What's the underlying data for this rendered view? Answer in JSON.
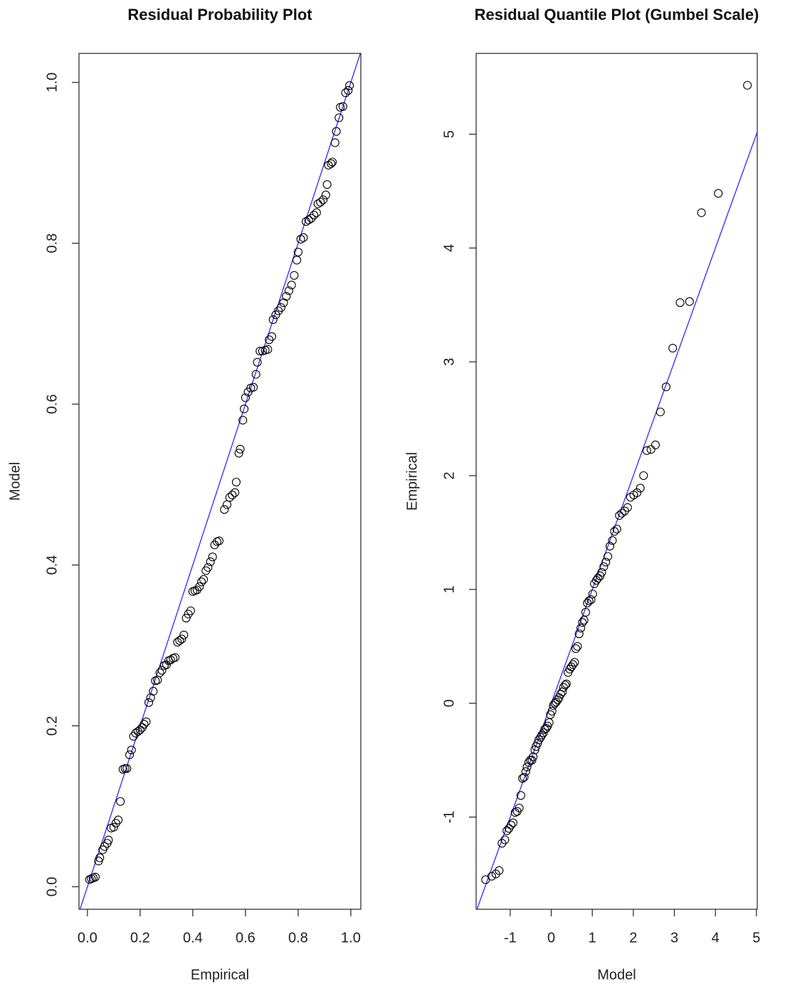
{
  "chart_data": [
    {
      "type": "scatter",
      "title": "Residual Probability Plot",
      "x_label": "Empirical",
      "y_label": "Model",
      "xlim": [
        -0.032,
        1.038
      ],
      "ylim": [
        -0.028,
        1.036
      ],
      "xticks": [
        {
          "value": 0,
          "label": "0.0"
        },
        0.2,
        0.4,
        0.6,
        0.8,
        {
          "value": 1,
          "label": "1.0"
        }
      ],
      "yticks": [
        {
          "value": 0,
          "label": "0.0"
        },
        0.2,
        0.4,
        0.6,
        0.8,
        {
          "value": 1,
          "label": "1.0"
        }
      ],
      "marker_color": "#000000",
      "reference_line": {
        "slope": 1,
        "intercept": 0,
        "color": "#2a2aff"
      },
      "x": [
        0.008,
        0.015,
        0.022,
        0.03,
        0.042,
        0.047,
        0.058,
        0.065,
        0.075,
        0.08,
        0.09,
        0.1,
        0.108,
        0.117,
        0.125,
        0.135,
        0.143,
        0.15,
        0.16,
        0.167,
        0.175,
        0.183,
        0.192,
        0.2,
        0.208,
        0.215,
        0.223,
        0.233,
        0.24,
        0.25,
        0.258,
        0.266,
        0.275,
        0.283,
        0.292,
        0.3,
        0.308,
        0.316,
        0.325,
        0.333,
        0.342,
        0.35,
        0.358,
        0.366,
        0.375,
        0.383,
        0.392,
        0.4,
        0.408,
        0.416,
        0.425,
        0.433,
        0.441,
        0.45,
        0.458,
        0.467,
        0.475,
        0.483,
        0.492,
        0.5,
        0.52,
        0.53,
        0.54,
        0.55,
        0.56,
        0.565,
        0.575,
        0.58,
        0.59,
        0.595,
        0.6,
        0.61,
        0.62,
        0.63,
        0.64,
        0.645,
        0.655,
        0.665,
        0.675,
        0.685,
        0.69,
        0.7,
        0.705,
        0.715,
        0.725,
        0.735,
        0.745,
        0.755,
        0.765,
        0.775,
        0.785,
        0.795,
        0.8,
        0.81,
        0.82,
        0.83,
        0.84,
        0.85,
        0.86,
        0.87,
        0.875,
        0.885,
        0.895,
        0.905,
        0.91,
        0.915,
        0.925,
        0.93,
        0.94,
        0.945,
        0.955,
        0.96,
        0.97,
        0.98,
        0.99,
        0.995
      ],
      "y": [
        0.009,
        0.01,
        0.011,
        0.012,
        0.032,
        0.036,
        0.046,
        0.05,
        0.054,
        0.058,
        0.073,
        0.074,
        0.079,
        0.083,
        0.106,
        0.146,
        0.147,
        0.147,
        0.164,
        0.17,
        0.187,
        0.191,
        0.193,
        0.195,
        0.198,
        0.202,
        0.205,
        0.229,
        0.235,
        0.243,
        0.256,
        0.257,
        0.266,
        0.269,
        0.275,
        0.276,
        0.281,
        0.282,
        0.284,
        0.285,
        0.304,
        0.306,
        0.308,
        0.313,
        0.334,
        0.339,
        0.343,
        0.367,
        0.368,
        0.369,
        0.373,
        0.379,
        0.382,
        0.393,
        0.397,
        0.404,
        0.41,
        0.425,
        0.429,
        0.43,
        0.469,
        0.475,
        0.484,
        0.487,
        0.49,
        0.503,
        0.539,
        0.544,
        0.58,
        0.594,
        0.608,
        0.615,
        0.62,
        0.621,
        0.637,
        0.652,
        0.666,
        0.666,
        0.667,
        0.668,
        0.68,
        0.684,
        0.705,
        0.711,
        0.716,
        0.72,
        0.726,
        0.734,
        0.741,
        0.748,
        0.76,
        0.779,
        0.789,
        0.805,
        0.807,
        0.827,
        0.829,
        0.831,
        0.835,
        0.838,
        0.849,
        0.851,
        0.854,
        0.86,
        0.873,
        0.897,
        0.899,
        0.901,
        0.925,
        0.939,
        0.956,
        0.969,
        0.97,
        0.987,
        0.99,
        0.996
      ]
    },
    {
      "type": "scatter",
      "title": "Residual Quantile Plot (Gumbel Scale)",
      "x_label": "Model",
      "y_label": "Empirical",
      "xlim": [
        -1.83,
        5.02
      ],
      "ylim": [
        -1.81,
        5.71
      ],
      "xticks": [
        -1,
        0,
        1,
        2,
        3,
        4,
        5
      ],
      "yticks": [
        -1,
        0,
        1,
        2,
        3,
        4,
        5
      ],
      "marker_color": "#000000",
      "reference_line": {
        "slope": 1,
        "intercept": 0,
        "color": "#2a2aff"
      },
      "x": [
        -1.6,
        -1.45,
        -1.35,
        -1.27,
        -1.2,
        -1.13,
        -1.08,
        -1.03,
        -0.98,
        -0.93,
        -0.88,
        -0.83,
        -0.78,
        -0.74,
        -0.7,
        -0.66,
        -0.62,
        -0.59,
        -0.55,
        -0.51,
        -0.47,
        -0.44,
        -0.4,
        -0.37,
        -0.33,
        -0.3,
        -0.26,
        -0.23,
        -0.19,
        -0.16,
        -0.12,
        -0.09,
        -0.05,
        -0.02,
        0.02,
        0.05,
        0.09,
        0.12,
        0.16,
        0.19,
        0.23,
        0.27,
        0.3,
        0.34,
        0.37,
        0.41,
        0.45,
        0.49,
        0.53,
        0.57,
        0.6,
        0.64,
        0.68,
        0.72,
        0.76,
        0.8,
        0.84,
        0.88,
        0.92,
        0.97,
        1.01,
        1.05,
        1.1,
        1.14,
        1.19,
        1.23,
        1.28,
        1.33,
        1.38,
        1.43,
        1.49,
        1.54,
        1.6,
        1.66,
        1.72,
        1.79,
        1.86,
        1.93,
        2.01,
        2.09,
        2.17,
        2.25,
        2.33,
        2.43,
        2.54,
        2.66,
        2.8,
        2.96,
        3.14,
        3.37,
        3.66,
        4.07,
        4.78
      ],
      "y": [
        -1.55,
        -1.52,
        -1.5,
        -1.47,
        -1.23,
        -1.2,
        -1.12,
        -1.1,
        -1.07,
        -1.05,
        -0.96,
        -0.95,
        -0.92,
        -0.81,
        -0.66,
        -0.65,
        -0.6,
        -0.56,
        -0.52,
        -0.5,
        -0.5,
        -0.47,
        -0.41,
        -0.38,
        -0.35,
        -0.32,
        -0.3,
        -0.28,
        -0.26,
        -0.23,
        -0.22,
        -0.2,
        -0.17,
        -0.1,
        -0.07,
        -0.02,
        0.0,
        0.01,
        0.03,
        0.05,
        0.08,
        0.1,
        0.14,
        0.16,
        0.17,
        0.27,
        0.3,
        0.32,
        0.34,
        0.36,
        0.48,
        0.5,
        0.61,
        0.66,
        0.71,
        0.73,
        0.8,
        0.88,
        0.9,
        0.91,
        0.96,
        1.05,
        1.08,
        1.1,
        1.12,
        1.15,
        1.2,
        1.24,
        1.29,
        1.38,
        1.43,
        1.51,
        1.53,
        1.65,
        1.67,
        1.69,
        1.72,
        1.81,
        1.83,
        1.85,
        1.89,
        2.0,
        2.22,
        2.23,
        2.27,
        2.56,
        2.78,
        3.12,
        3.52,
        3.53,
        4.31,
        4.48,
        5.43
      ]
    }
  ]
}
